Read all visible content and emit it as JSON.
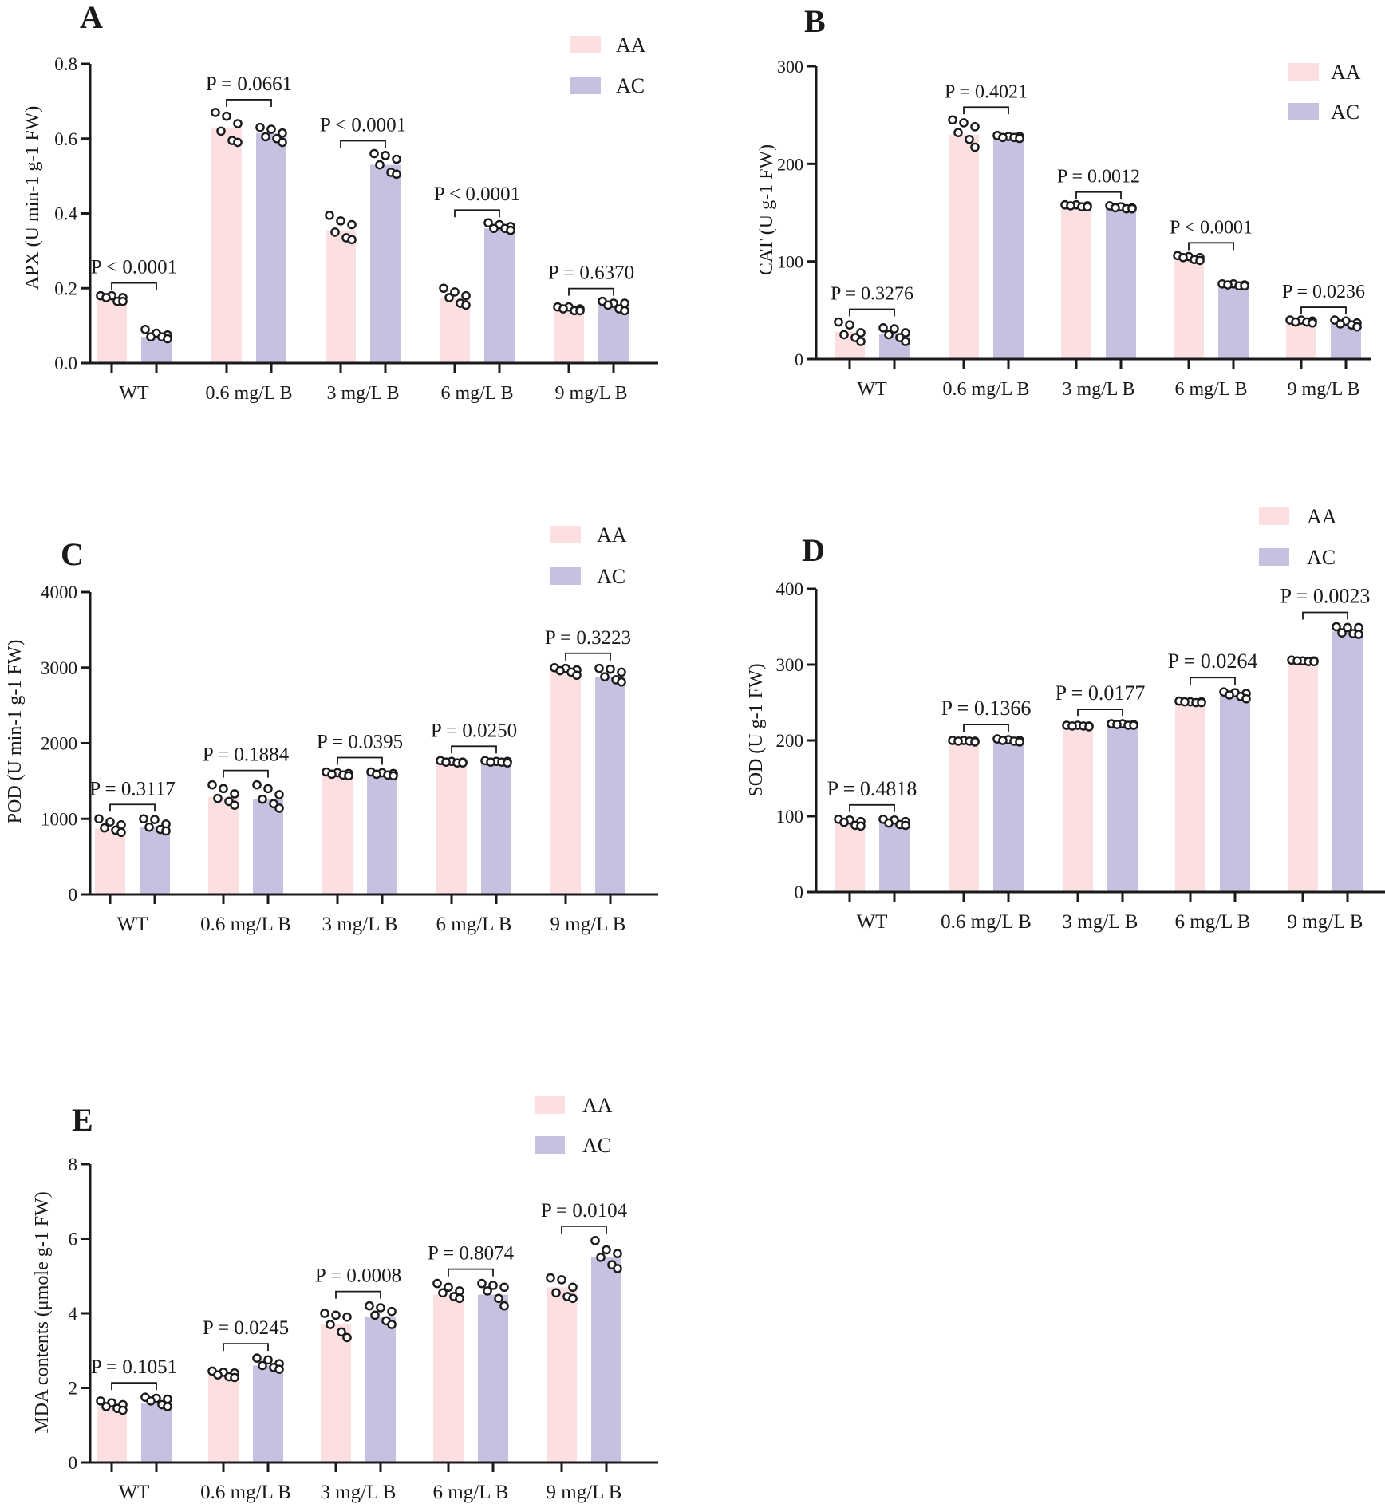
{
  "colors": {
    "AA": "#fbdfe1",
    "AC": "#c4c1e1",
    "axis": "#1a1a1a",
    "dot_fill": "#ffffff"
  },
  "legend": [
    "AA",
    "AC"
  ],
  "chart_data": [
    {
      "type": "bar",
      "panel": "A",
      "ylabel": "APX (U min-1 g-1 FW)",
      "categories": [
        "WT",
        "0.6 mg/L B",
        "3 mg/L B",
        "6 mg/L B",
        "9 mg/L B"
      ],
      "ylim": [
        0,
        0.8
      ],
      "yticks": [
        "0.0",
        "0.2",
        "0.4",
        "0.6",
        "0.8"
      ],
      "series": [
        {
          "name": "AA",
          "values": [
            0.17,
            0.63,
            0.355,
            0.175,
            0.145
          ],
          "points": [
            [
              0.18,
              0.18,
              0.175,
              0.175,
              0.165,
              0.165
            ],
            [
              0.67,
              0.66,
              0.64,
              0.62,
              0.595,
              0.59
            ],
            [
              0.395,
              0.38,
              0.37,
              0.35,
              0.335,
              0.33
            ],
            [
              0.2,
              0.19,
              0.18,
              0.175,
              0.16,
              0.155
            ],
            [
              0.15,
              0.15,
              0.145,
              0.145,
              0.14,
              0.14
            ]
          ]
        },
        {
          "name": "AC",
          "values": [
            0.07,
            0.615,
            0.53,
            0.36,
            0.155
          ],
          "points": [
            [
              0.09,
              0.08,
              0.075,
              0.07,
              0.07,
              0.065
            ],
            [
              0.63,
              0.625,
              0.615,
              0.605,
              0.6,
              0.59
            ],
            [
              0.56,
              0.555,
              0.545,
              0.53,
              0.51,
              0.505
            ],
            [
              0.375,
              0.37,
              0.365,
              0.36,
              0.36,
              0.355
            ],
            [
              0.165,
              0.16,
              0.16,
              0.155,
              0.145,
              0.14
            ]
          ]
        }
      ],
      "annotations": [
        "P < 0.0001",
        "P = 0.0661",
        "P < 0.0001",
        "P < 0.0001",
        "P = 0.6370"
      ]
    },
    {
      "type": "bar",
      "panel": "B",
      "ylabel": "CAT (U  g-1 FW)",
      "categories": [
        "WT",
        "0.6 mg/L B",
        "3 mg/L B",
        "6 mg/L B",
        "9 mg/L B"
      ],
      "ylim": [
        0,
        300
      ],
      "yticks": [
        "0",
        "100",
        "200",
        "300"
      ],
      "series": [
        {
          "name": "AA",
          "values": [
            28,
            230,
            156,
            103,
            38
          ],
          "points": [
            [
              38,
              35,
              27,
              25,
              22,
              18
            ],
            [
              245,
              242,
              238,
              232,
              225,
              217
            ],
            [
              158,
              158,
              157,
              157,
              156,
              156
            ],
            [
              106,
              105,
              104,
              104,
              102,
              101
            ],
            [
              40,
              40,
              39,
              38,
              38,
              37
            ]
          ]
        },
        {
          "name": "AC",
          "values": [
            26,
            228,
            154,
            76,
            36
          ],
          "points": [
            [
              32,
              31,
              27,
              25,
              22,
              18
            ],
            [
              229,
              228,
              228,
              227,
              227,
              226
            ],
            [
              157,
              156,
              155,
              155,
              154,
              154
            ],
            [
              77,
              77,
              76,
              76,
              75,
              75
            ],
            [
              40,
              39,
              37,
              36,
              35,
              33
            ]
          ]
        }
      ],
      "annotations": [
        "P = 0.3276",
        "P = 0.4021",
        "P = 0.0012",
        "P < 0.0001",
        "P = 0.0236"
      ]
    },
    {
      "type": "bar",
      "panel": "C",
      "ylabel": "POD (U min-1 g-1 FW)",
      "categories": [
        "WT",
        "0.6 mg/L B",
        "3 mg/L B",
        "6 mg/L B",
        "9 mg/L B"
      ],
      "ylim": [
        0,
        4000
      ],
      "yticks": [
        "0",
        "1000",
        "2000",
        "3000",
        "4000"
      ],
      "series": [
        {
          "name": "AA",
          "values": [
            870,
            1290,
            1590,
            1750,
            2960
          ],
          "points": [
            [
              1000,
              960,
              920,
              880,
              850,
              820
            ],
            [
              1450,
              1400,
              1330,
              1270,
              1230,
              1180
            ],
            [
              1620,
              1610,
              1600,
              1590,
              1580,
              1570
            ],
            [
              1770,
              1760,
              1750,
              1750,
              1740,
              1740
            ],
            [
              3000,
              2990,
              2970,
              2960,
              2940,
              2900
            ]
          ]
        },
        {
          "name": "AC",
          "values": [
            890,
            1260,
            1590,
            1750,
            2880
          ],
          "points": [
            [
              1000,
              990,
              930,
              890,
              860,
              840
            ],
            [
              1450,
              1400,
              1320,
              1260,
              1200,
              1140
            ],
            [
              1620,
              1610,
              1600,
              1590,
              1580,
              1570
            ],
            [
              1770,
              1760,
              1760,
              1750,
              1750,
              1740
            ],
            [
              2990,
              2980,
              2940,
              2880,
              2840,
              2810
            ]
          ]
        }
      ],
      "annotations": [
        "P = 0.3117",
        "P = 0.1884",
        "P = 0.0395",
        "P = 0.0250",
        "P = 0.3223"
      ]
    },
    {
      "type": "bar",
      "panel": "D",
      "ylabel": "SOD (U  g-1 FW)",
      "categories": [
        "WT",
        "0.6 mg/L B",
        "3 mg/L B",
        "6 mg/L B",
        "9 mg/L B"
      ],
      "ylim": [
        0,
        400
      ],
      "yticks": [
        "0",
        "100",
        "200",
        "300",
        "400"
      ],
      "series": [
        {
          "name": "AA",
          "values": [
            91,
            199,
            219,
            251,
            305
          ],
          "points": [
            [
              96,
              95,
              93,
              92,
              88,
              87
            ],
            [
              200,
              200,
              199,
              199,
              199,
              198
            ],
            [
              220,
              220,
              219,
              219,
              219,
              218
            ],
            [
              252,
              251,
              251,
              251,
              250,
              250
            ],
            [
              306,
              305,
              305,
              305,
              304,
              304
            ]
          ]
        },
        {
          "name": "AC",
          "values": [
            91,
            200,
            221,
            260,
            344
          ],
          "points": [
            [
              96,
              95,
              93,
              91,
              89,
              88
            ],
            [
              202,
              201,
              200,
              200,
              199,
              198
            ],
            [
              222,
              222,
              221,
              221,
              220,
              220
            ],
            [
              264,
              263,
              262,
              260,
              258,
              255
            ],
            [
              350,
              349,
              349,
              342,
              341,
              340
            ]
          ]
        }
      ],
      "annotations": [
        "P = 0.4818",
        "P = 0.1366",
        "P = 0.0177",
        "P = 0.0264",
        "P = 0.0023"
      ]
    },
    {
      "type": "bar",
      "panel": "E",
      "ylabel": "MDA contents (μmole g-1 FW)",
      "categories": [
        "WT",
        "0.6 mg/L B",
        "3 mg/L B",
        "6 mg/L B",
        "9 mg/L B"
      ],
      "ylim": [
        0,
        8
      ],
      "yticks": [
        "0",
        "2",
        "4",
        "6",
        "8"
      ],
      "series": [
        {
          "name": "AA",
          "values": [
            1.5,
            2.35,
            3.7,
            4.5,
            4.7
          ],
          "points": [
            [
              1.65,
              1.6,
              1.55,
              1.5,
              1.45,
              1.4
            ],
            [
              2.45,
              2.42,
              2.4,
              2.35,
              2.3,
              2.28
            ],
            [
              4.0,
              3.95,
              3.9,
              3.7,
              3.5,
              3.35
            ],
            [
              4.8,
              4.7,
              4.6,
              4.55,
              4.45,
              4.4
            ],
            [
              4.95,
              4.9,
              4.7,
              4.55,
              4.45,
              4.4
            ]
          ]
        },
        {
          "name": "AC",
          "values": [
            1.6,
            2.6,
            3.9,
            4.5,
            5.5
          ],
          "points": [
            [
              1.75,
              1.72,
              1.7,
              1.65,
              1.55,
              1.5
            ],
            [
              2.8,
              2.75,
              2.65,
              2.6,
              2.55,
              2.5
            ],
            [
              4.2,
              4.15,
              4.05,
              3.95,
              3.8,
              3.7
            ],
            [
              4.8,
              4.75,
              4.7,
              4.6,
              4.4,
              4.2
            ],
            [
              5.95,
              5.7,
              5.6,
              5.5,
              5.3,
              5.2
            ]
          ]
        }
      ],
      "annotations": [
        "P = 0.1051",
        "P = 0.0245",
        "P = 0.0008",
        "P = 0.8074",
        "P = 0.0104"
      ]
    }
  ]
}
